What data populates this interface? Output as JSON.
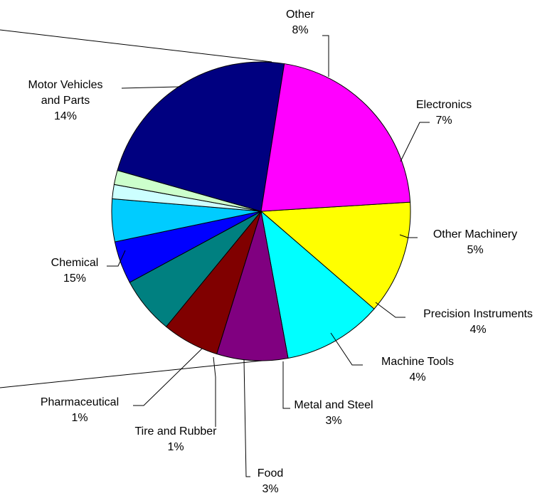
{
  "chart_data": {
    "type": "pie",
    "slices": [
      {
        "name": "Other",
        "percent_label": "8%",
        "value": 8,
        "color": "#FFFF00"
      },
      {
        "name": "Electronics",
        "percent_label": "7%",
        "value": 7,
        "color": "#00FFFF"
      },
      {
        "name": "Other Machinery",
        "percent_label": "5%",
        "value": 5,
        "color": "#800080"
      },
      {
        "name": "Precision Instruments",
        "percent_label": "4%",
        "value": 4,
        "color": "#800000"
      },
      {
        "name": "Machine Tools",
        "percent_label": "4%",
        "value": 4,
        "color": "#008080"
      },
      {
        "name": "Metal and Steel",
        "percent_label": "3%",
        "value": 3,
        "color": "#0000FF"
      },
      {
        "name": "Food",
        "percent_label": "3%",
        "value": 3,
        "color": "#00CCFF"
      },
      {
        "name": "Tire and Rubber",
        "percent_label": "1%",
        "value": 1,
        "color": "#CCFFFF"
      },
      {
        "name": "Pharmaceutical",
        "percent_label": "1%",
        "value": 1,
        "color": "#CCFFCC"
      },
      {
        "name": "Chemical",
        "percent_label": "15%",
        "value": 15,
        "color": "#000080"
      },
      {
        "name": "Motor Vehicles and Parts",
        "name_lines": [
          "Motor Vehicles",
          "and Parts"
        ],
        "percent_label": "14%",
        "value": 14,
        "color": "#FF00FF"
      }
    ],
    "legend": "none"
  }
}
